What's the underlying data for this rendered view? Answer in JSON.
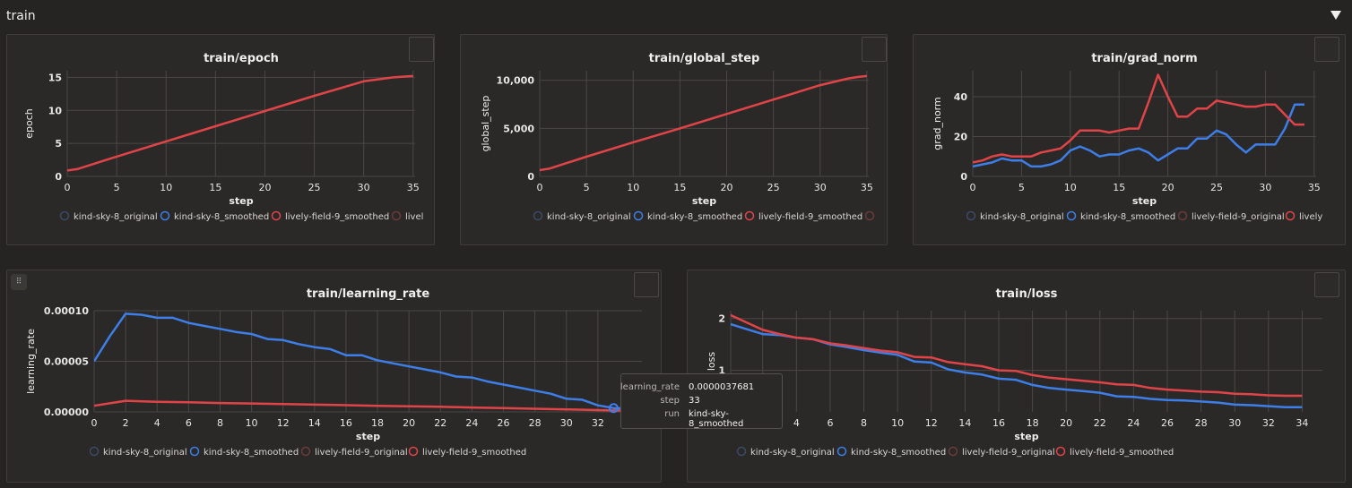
{
  "section": {
    "title": "train"
  },
  "colors": {
    "blue": "#3d7ee8",
    "red": "#e04448",
    "grid": "#4a4744",
    "axis": "#e8e6e3"
  },
  "legends": {
    "p1": [
      "kind-sky-8_original",
      "kind-sky-8_smoothed",
      "lively-field-9_smoothed",
      "livel"
    ],
    "p2": [
      "kind-sky-8_original",
      "kind-sky-8_smoothed",
      "lively-field-9_smoothed",
      ""
    ],
    "p3": [
      "kind-sky-8_original",
      "kind-sky-8_smoothed",
      "lively-field-9_original",
      "lively"
    ],
    "p4": [
      "kind-sky-8_original",
      "kind-sky-8_smoothed",
      "lively-field-9_original",
      "lively-field-9_smoothed"
    ],
    "p5": [
      "kind-sky-8_original",
      "kind-sky-8_smoothed",
      "lively-field-9_original",
      "lively-field-9_smoothed"
    ]
  },
  "tooltip": {
    "rows": [
      {
        "key": "learning_rate",
        "value": "0.0000037681"
      },
      {
        "key": "step",
        "value": "33"
      },
      {
        "key": "run",
        "value": "kind-sky-8_smoothed"
      }
    ]
  },
  "chart_data": [
    {
      "type": "line",
      "title": "train/epoch",
      "xlabel": "step",
      "ylabel": "epoch",
      "xlim": [
        0,
        35.2
      ],
      "ylim": [
        0,
        16
      ],
      "xticks": [
        0,
        5,
        10,
        15,
        20,
        25,
        30,
        35
      ],
      "xtick_labels": [
        "0",
        "5",
        "10",
        "15",
        "20",
        "25",
        "30",
        "35"
      ],
      "yticks": [
        0,
        5,
        10,
        15
      ],
      "ytick_labels": [
        "0",
        "5",
        "10",
        "15"
      ],
      "series": [
        {
          "name": "lively-field-9_smoothed",
          "color": "red",
          "x": [
            0,
            1,
            5,
            10,
            15,
            20,
            25,
            30,
            33,
            34,
            35
          ],
          "y": [
            0.9,
            1.1,
            3.0,
            5.3,
            7.6,
            9.9,
            12.2,
            14.4,
            15.0,
            15.1,
            15.2
          ]
        }
      ]
    },
    {
      "type": "line",
      "title": "train/global_step",
      "xlabel": "step",
      "ylabel": "global_step",
      "xlim": [
        0,
        35.2
      ],
      "ylim": [
        0,
        11000
      ],
      "xticks": [
        0,
        5,
        10,
        15,
        20,
        25,
        30,
        35
      ],
      "xtick_labels": [
        "0",
        "5",
        "10",
        "15",
        "20",
        "25",
        "30",
        "35"
      ],
      "yticks": [
        0,
        5000,
        10000
      ],
      "ytick_labels": [
        "0",
        "5,000",
        "10,000"
      ],
      "series": [
        {
          "name": "lively-field-9_smoothed",
          "color": "red",
          "x": [
            0,
            1,
            5,
            10,
            15,
            20,
            25,
            30,
            33,
            34,
            35
          ],
          "y": [
            650,
            800,
            2050,
            3550,
            5000,
            6500,
            8000,
            9500,
            10200,
            10350,
            10450
          ]
        }
      ]
    },
    {
      "type": "line",
      "title": "train/grad_norm",
      "xlabel": "step",
      "ylabel": "grad_norm",
      "xlim": [
        0,
        35.2
      ],
      "ylim": [
        0,
        53
      ],
      "xticks": [
        0,
        5,
        10,
        15,
        20,
        25,
        30,
        35
      ],
      "xtick_labels": [
        "0",
        "5",
        "10",
        "15",
        "20",
        "25",
        "30",
        "35"
      ],
      "yticks": [
        0,
        20,
        40
      ],
      "ytick_labels": [
        "0",
        "20",
        "40"
      ],
      "series": [
        {
          "name": "kind-sky-8_smoothed",
          "color": "blue",
          "x": [
            0,
            1,
            2,
            3,
            4,
            5,
            6,
            7,
            8,
            9,
            10,
            11,
            12,
            13,
            14,
            15,
            16,
            17,
            18,
            19,
            20,
            21,
            22,
            23,
            24,
            25,
            26,
            27,
            28,
            29,
            30,
            31,
            32,
            33,
            34
          ],
          "y": [
            5,
            6,
            7,
            9,
            8,
            8,
            5,
            5,
            6,
            8,
            13,
            15,
            13,
            10,
            11,
            11,
            13,
            14,
            12,
            8,
            11,
            14,
            14,
            19,
            19,
            23,
            21,
            16,
            12,
            16,
            16,
            16,
            24,
            36,
            36
          ]
        },
        {
          "name": "lively-field-9_smoothed",
          "color": "red",
          "x": [
            0,
            1,
            2,
            3,
            4,
            5,
            6,
            7,
            8,
            9,
            10,
            11,
            12,
            13,
            14,
            15,
            16,
            17,
            18,
            19,
            20,
            21,
            22,
            23,
            24,
            25,
            26,
            27,
            28,
            29,
            30,
            31,
            32,
            33,
            34
          ],
          "y": [
            7,
            8,
            10,
            11,
            10,
            10,
            10,
            12,
            13,
            14,
            18,
            23,
            23,
            23,
            22,
            23,
            24,
            24,
            37,
            51,
            40,
            30,
            30,
            34,
            34,
            38,
            37,
            36,
            35,
            35,
            36,
            36,
            31,
            26,
            26
          ]
        }
      ]
    },
    {
      "type": "line",
      "title": "train/learning_rate",
      "xlabel": "step",
      "ylabel": "learning_rate",
      "xlim": [
        0,
        34.8
      ],
      "ylim": [
        0,
        0.0001
      ],
      "xticks": [
        0,
        2,
        4,
        6,
        8,
        10,
        12,
        14,
        16,
        18,
        20,
        22,
        24,
        26,
        28,
        30,
        32
      ],
      "xtick_labels": [
        "0",
        "2",
        "4",
        "6",
        "8",
        "10",
        "12",
        "14",
        "16",
        "18",
        "20",
        "22",
        "24",
        "26",
        "28",
        "30",
        "32"
      ],
      "yticks": [
        0,
        5e-05,
        0.0001
      ],
      "ytick_labels": [
        "0.00000",
        "0.00005",
        "0.00010"
      ],
      "series": [
        {
          "name": "kind-sky-8_smoothed",
          "color": "blue",
          "x": [
            0,
            1,
            2,
            3,
            4,
            5,
            6,
            7,
            8,
            9,
            10,
            11,
            12,
            13,
            14,
            15,
            16,
            17,
            18,
            19,
            20,
            21,
            22,
            23,
            24,
            25,
            26,
            27,
            28,
            29,
            30,
            31,
            32,
            33,
            34
          ],
          "y": [
            5e-05,
            7.5e-05,
            9.7e-05,
            9.6e-05,
            9.3e-05,
            9.3e-05,
            8.8e-05,
            8.5e-05,
            8.2e-05,
            7.9e-05,
            7.7e-05,
            7.2e-05,
            7.1e-05,
            6.7e-05,
            6.4e-05,
            6.2e-05,
            5.6e-05,
            5.6e-05,
            5.1e-05,
            4.8e-05,
            4.5e-05,
            4.2e-05,
            3.9e-05,
            3.5e-05,
            3.4e-05,
            3e-05,
            2.7e-05,
            2.4e-05,
            2.1e-05,
            1.8e-05,
            1.3e-05,
            1.2e-05,
            6.5e-06,
            3.8e-06,
            3.5e-06
          ]
        },
        {
          "name": "lively-field-9_smoothed",
          "color": "red",
          "x": [
            0,
            2,
            4,
            6,
            8,
            10,
            12,
            14,
            16,
            18,
            20,
            22,
            24,
            26,
            28,
            30,
            32,
            34
          ],
          "y": [
            6e-06,
            1.1e-05,
            1e-05,
            9.5e-06,
            8.8e-06,
            8.3e-06,
            7.7e-06,
            7.2e-06,
            6.6e-06,
            6e-06,
            5.5e-06,
            5e-06,
            4.3e-06,
            3.7e-06,
            3.1e-06,
            2.5e-06,
            1.8e-06,
            1.2e-06
          ]
        }
      ]
    },
    {
      "type": "line",
      "title": "train/loss",
      "xlabel": "step",
      "ylabel": "loss",
      "xlim": [
        0.1,
        35.2
      ],
      "ylim": [
        0.2,
        2.15
      ],
      "xticks": [
        2,
        4,
        6,
        8,
        10,
        12,
        14,
        16,
        18,
        20,
        22,
        24,
        26,
        28,
        30,
        32,
        34
      ],
      "xtick_labels": [
        "2",
        "4",
        "6",
        "8",
        "10",
        "12",
        "14",
        "16",
        "18",
        "20",
        "22",
        "24",
        "26",
        "28",
        "30",
        "32",
        "34"
      ],
      "yticks": [
        1,
        2
      ],
      "ytick_labels": [
        "1",
        "2"
      ],
      "series": [
        {
          "name": "kind-sky-8_smoothed",
          "color": "blue",
          "x": [
            0,
            1,
            2,
            3,
            4,
            5,
            6,
            7,
            8,
            9,
            10,
            11,
            12,
            13,
            14,
            15,
            16,
            17,
            18,
            19,
            20,
            21,
            22,
            23,
            24,
            25,
            26,
            27,
            28,
            29,
            30,
            31,
            32,
            33,
            34
          ],
          "y": [
            1.9,
            1.8,
            1.7,
            1.68,
            1.63,
            1.6,
            1.5,
            1.45,
            1.39,
            1.34,
            1.3,
            1.17,
            1.15,
            1.02,
            0.96,
            0.92,
            0.84,
            0.82,
            0.72,
            0.66,
            0.63,
            0.6,
            0.57,
            0.5,
            0.49,
            0.45,
            0.43,
            0.42,
            0.4,
            0.38,
            0.34,
            0.33,
            0.31,
            0.29,
            0.29
          ]
        },
        {
          "name": "lively-field-9_smoothed",
          "color": "red",
          "x": [
            0,
            1,
            2,
            3,
            4,
            5,
            6,
            7,
            8,
            9,
            10,
            11,
            12,
            13,
            14,
            15,
            16,
            17,
            18,
            19,
            20,
            21,
            22,
            23,
            24,
            25,
            26,
            27,
            28,
            29,
            30,
            31,
            32,
            33,
            34
          ],
          "y": [
            2.08,
            1.93,
            1.78,
            1.7,
            1.63,
            1.6,
            1.52,
            1.48,
            1.43,
            1.38,
            1.35,
            1.26,
            1.25,
            1.16,
            1.12,
            1.08,
            1.0,
            0.99,
            0.91,
            0.86,
            0.83,
            0.8,
            0.77,
            0.73,
            0.72,
            0.66,
            0.63,
            0.61,
            0.59,
            0.58,
            0.55,
            0.54,
            0.52,
            0.51,
            0.51
          ]
        }
      ]
    }
  ]
}
